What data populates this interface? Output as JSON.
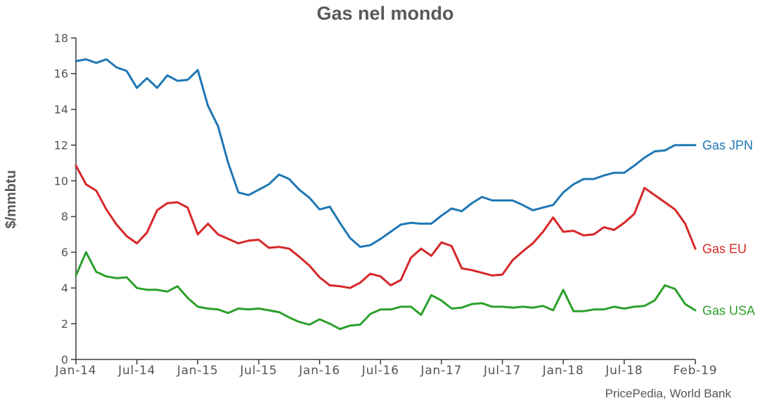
{
  "chart_data": {
    "type": "line",
    "title": "Gas nel mondo",
    "ylabel": "$/mmbtu",
    "source": "PricePedia, World Bank",
    "x": [
      "Jan-14",
      "Feb-14",
      "Mar-14",
      "Apr-14",
      "May-14",
      "Jun-14",
      "Jul-14",
      "Aug-14",
      "Sep-14",
      "Oct-14",
      "Nov-14",
      "Dec-14",
      "Jan-15",
      "Feb-15",
      "Mar-15",
      "Apr-15",
      "May-15",
      "Jun-15",
      "Jul-15",
      "Aug-15",
      "Sep-15",
      "Oct-15",
      "Nov-15",
      "Dec-15",
      "Jan-16",
      "Feb-16",
      "Mar-16",
      "Apr-16",
      "May-16",
      "Jun-16",
      "Jul-16",
      "Aug-16",
      "Sep-16",
      "Oct-16",
      "Nov-16",
      "Dec-16",
      "Jan-17",
      "Feb-17",
      "Mar-17",
      "Apr-17",
      "May-17",
      "Jun-17",
      "Jul-17",
      "Aug-17",
      "Sep-17",
      "Oct-17",
      "Nov-17",
      "Dec-17",
      "Jan-18",
      "Feb-18",
      "Mar-18",
      "Apr-18",
      "May-18",
      "Jun-18",
      "Jul-18",
      "Aug-18",
      "Sep-18",
      "Oct-18",
      "Nov-18",
      "Dec-18",
      "Jan-19",
      "Feb-19"
    ],
    "xticks": [
      "Jan-14",
      "Jul-14",
      "Jan-15",
      "Jul-15",
      "Jan-16",
      "Jul-16",
      "Jan-17",
      "Jul-17",
      "Jan-18",
      "Jul-18",
      "Feb-19"
    ],
    "yticks": [
      0,
      2,
      4,
      6,
      8,
      10,
      12,
      14,
      16,
      18
    ],
    "ylim": [
      0,
      18
    ],
    "grid": false,
    "legend": "right",
    "series": [
      {
        "name": "Gas JPN",
        "color": "#1f77b4",
        "values": [
          16.7,
          16.8,
          16.6,
          16.8,
          16.35,
          16.15,
          15.2,
          15.75,
          15.2,
          15.9,
          15.6,
          15.65,
          16.2,
          14.2,
          13.05,
          11.0,
          9.35,
          9.2,
          9.5,
          9.8,
          10.35,
          10.1,
          9.5,
          9.05,
          8.4,
          8.55,
          7.65,
          6.8,
          6.3,
          6.4,
          6.75,
          7.15,
          7.55,
          7.65,
          7.6,
          7.6,
          8.05,
          8.45,
          8.3,
          8.75,
          9.1,
          8.9,
          8.9,
          8.9,
          8.65,
          8.35,
          8.5,
          8.65,
          9.35,
          9.8,
          10.1,
          10.1,
          10.3,
          10.45,
          10.45,
          10.85,
          11.3,
          11.65,
          11.7,
          12.0,
          12.0,
          12.0
        ]
      },
      {
        "name": "Gas EU",
        "color": "#d62728",
        "values": [
          10.85,
          9.8,
          9.45,
          8.4,
          7.55,
          6.9,
          6.5,
          7.1,
          8.35,
          8.75,
          8.8,
          8.5,
          7.0,
          7.6,
          7.0,
          6.75,
          6.5,
          6.65,
          6.7,
          6.25,
          6.3,
          6.2,
          5.75,
          5.25,
          4.6,
          4.15,
          4.1,
          4.0,
          4.3,
          4.8,
          4.65,
          4.15,
          4.45,
          5.7,
          6.2,
          5.8,
          6.55,
          6.35,
          5.1,
          5.0,
          4.85,
          4.7,
          4.75,
          5.55,
          6.05,
          6.5,
          7.15,
          7.95,
          7.15,
          7.2,
          6.95,
          7.0,
          7.4,
          7.25,
          7.65,
          8.15,
          9.6,
          9.2,
          8.8,
          8.4,
          7.6,
          6.2
        ]
      },
      {
        "name": "Gas USA",
        "color": "#2ca02c",
        "values": [
          4.7,
          6.0,
          4.9,
          4.65,
          4.55,
          4.6,
          4.0,
          3.9,
          3.9,
          3.8,
          4.1,
          3.45,
          2.95,
          2.85,
          2.8,
          2.6,
          2.85,
          2.8,
          2.85,
          2.75,
          2.65,
          2.35,
          2.1,
          1.95,
          2.25,
          2.0,
          1.7,
          1.9,
          1.95,
          2.55,
          2.8,
          2.8,
          2.95,
          2.95,
          2.5,
          3.6,
          3.3,
          2.85,
          2.9,
          3.1,
          3.15,
          2.95,
          2.95,
          2.9,
          2.95,
          2.9,
          3.0,
          2.75,
          3.9,
          2.7,
          2.7,
          2.8,
          2.8,
          2.95,
          2.85,
          2.95,
          3.0,
          3.3,
          4.15,
          3.95,
          3.1,
          2.75
        ]
      }
    ]
  }
}
